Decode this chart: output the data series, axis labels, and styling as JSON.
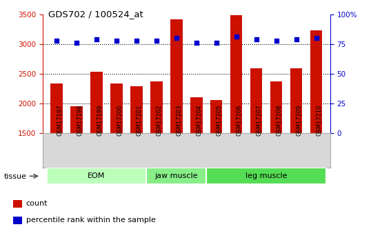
{
  "title": "GDS702 / 100524_at",
  "samples": [
    "GSM17197",
    "GSM17198",
    "GSM17199",
    "GSM17200",
    "GSM17201",
    "GSM17202",
    "GSM17203",
    "GSM17204",
    "GSM17205",
    "GSM17206",
    "GSM17207",
    "GSM17208",
    "GSM17209",
    "GSM17210"
  ],
  "counts": [
    2340,
    1960,
    2530,
    2335,
    2295,
    2370,
    3420,
    2110,
    2055,
    3490,
    2590,
    2370,
    2590,
    3225
  ],
  "percentiles": [
    78,
    76,
    79,
    78,
    78,
    78,
    80,
    76,
    76,
    81,
    79,
    78,
    79,
    80
  ],
  "ylim_left": [
    1500,
    3500
  ],
  "ylim_right": [
    0,
    100
  ],
  "yticks_left": [
    1500,
    2000,
    2500,
    3000,
    3500
  ],
  "yticks_right": [
    0,
    25,
    50,
    75,
    100
  ],
  "bar_color": "#cc1100",
  "dot_color": "#0000cc",
  "tissue_groups": [
    {
      "label": "EOM",
      "start": 0,
      "end": 5
    },
    {
      "label": "jaw muscle",
      "start": 5,
      "end": 8
    },
    {
      "label": "leg muscle",
      "start": 8,
      "end": 14
    }
  ],
  "tissue_colors": [
    "#bbffbb",
    "#88ee88",
    "#55dd55"
  ],
  "legend_count_label": "count",
  "legend_pct_label": "percentile rank within the sample",
  "tissue_label": "tissue",
  "bar_color_red": "#cc1100",
  "dot_color_blue": "#0000cc"
}
